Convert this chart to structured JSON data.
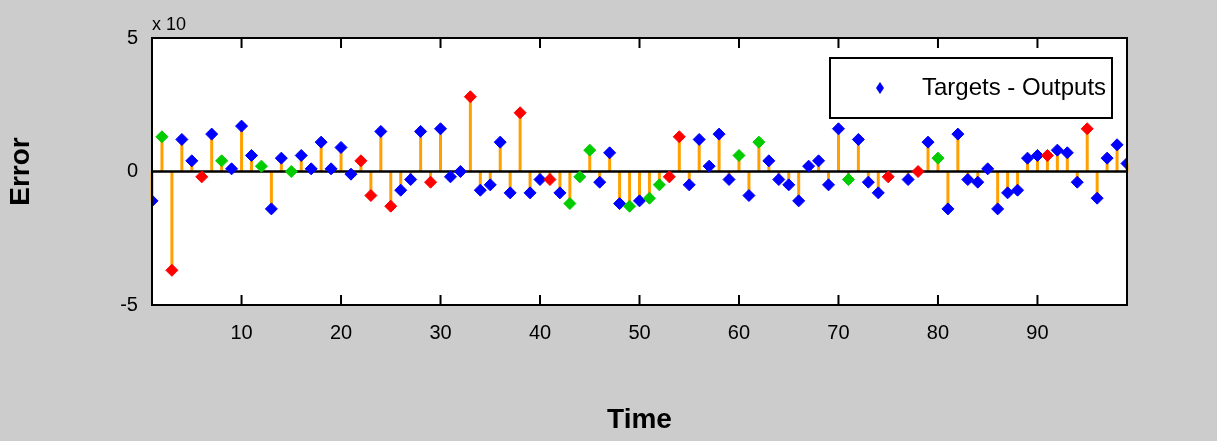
{
  "chart_data": {
    "type": "lollipop",
    "xlabel": "Time",
    "ylabel": "Error",
    "annotations": [
      "x 10"
    ],
    "x": [
      1,
      2,
      3,
      4,
      5,
      6,
      7,
      8,
      9,
      10,
      11,
      12,
      13,
      14,
      15,
      16,
      17,
      18,
      19,
      20,
      21,
      22,
      23,
      24,
      25,
      26,
      27,
      28,
      29,
      30,
      31,
      32,
      33,
      34,
      35,
      36,
      37,
      38,
      39,
      40,
      41,
      42,
      43,
      44,
      45,
      46,
      47,
      48,
      49,
      50,
      51,
      52,
      53,
      54,
      55,
      56,
      57,
      58,
      59,
      60,
      61,
      62,
      63,
      64,
      65,
      66,
      67,
      68,
      69,
      70,
      71,
      72,
      73,
      74,
      75,
      76,
      77,
      78,
      79,
      80,
      81,
      82,
      83,
      84,
      85,
      86,
      87,
      88,
      89,
      90,
      91,
      92,
      93,
      94,
      95,
      96,
      97,
      98,
      99
    ],
    "series": [
      {
        "name": "Targets - Outputs",
        "color": "#ffa000",
        "colors": [
          "#0000ff",
          "#00cc00",
          "#ff0000",
          "#0000ff",
          "#0000ff",
          "#ff0000",
          "#0000ff",
          "#00cc00",
          "#0000ff",
          "#0000ff",
          "#0000ff",
          "#00cc00",
          "#0000ff",
          "#0000ff",
          "#00cc00",
          "#0000ff",
          "#0000ff",
          "#0000ff",
          "#0000ff",
          "#0000ff",
          "#0000ff",
          "#ff0000",
          "#ff0000",
          "#0000ff",
          "#ff0000",
          "#0000ff",
          "#0000ff",
          "#0000ff",
          "#ff0000",
          "#0000ff",
          "#0000ff",
          "#0000ff",
          "#ff0000",
          "#0000ff",
          "#0000ff",
          "#0000ff",
          "#0000ff",
          "#ff0000",
          "#0000ff",
          "#0000ff",
          "#ff0000",
          "#0000ff",
          "#00cc00",
          "#00cc00",
          "#00cc00",
          "#0000ff",
          "#0000ff",
          "#0000ff",
          "#00cc00",
          "#0000ff",
          "#00cc00",
          "#00cc00",
          "#ff0000",
          "#ff0000",
          "#0000ff",
          "#0000ff",
          "#0000ff",
          "#0000ff",
          "#0000ff",
          "#00cc00",
          "#0000ff",
          "#00cc00",
          "#0000ff",
          "#0000ff",
          "#0000ff",
          "#0000ff",
          "#0000ff",
          "#0000ff",
          "#0000ff",
          "#0000ff",
          "#00cc00",
          "#0000ff",
          "#0000ff",
          "#0000ff",
          "#ff0000",
          "#0000ff",
          "#0000ff",
          "#ff0000",
          "#0000ff",
          "#00cc00",
          "#0000ff",
          "#0000ff",
          "#0000ff",
          "#0000ff",
          "#0000ff",
          "#0000ff",
          "#0000ff",
          "#0000ff",
          "#0000ff",
          "#0000ff",
          "#ff0000",
          "#0000ff",
          "#0000ff",
          "#0000ff",
          "#ff0000",
          "#0000ff",
          "#0000ff",
          "#0000ff",
          "#0000ff"
        ],
        "values": [
          -1.1,
          1.3,
          -3.7,
          1.2,
          0.4,
          -0.2,
          1.4,
          0.4,
          0.1,
          1.7,
          0.6,
          0.2,
          -1.4,
          0.5,
          0.0,
          0.6,
          0.1,
          1.1,
          0.1,
          0.9,
          -0.1,
          0.4,
          -0.9,
          1.5,
          -1.3,
          -0.7,
          -0.3,
          1.5,
          -0.4,
          1.6,
          -0.2,
          0.0,
          2.8,
          -0.7,
          -0.5,
          1.1,
          -0.8,
          2.2,
          -0.8,
          -0.3,
          -0.3,
          -0.8,
          -1.2,
          -0.2,
          0.8,
          -0.4,
          0.7,
          -1.2,
          -1.3,
          -1.1,
          -1.0,
          -0.5,
          -0.2,
          1.3,
          -0.5,
          1.2,
          0.2,
          1.4,
          -0.3,
          0.6,
          -0.9,
          1.1,
          0.4,
          -0.3,
          -0.5,
          -1.1,
          0.2,
          0.4,
          -0.5,
          1.6,
          -0.3,
          1.2,
          -0.4,
          -0.8,
          -0.2,
          null,
          -0.3,
          0.0,
          1.1,
          0.5,
          -1.4,
          1.4,
          -0.3,
          -0.4,
          0.1,
          -1.4,
          -0.8,
          -0.7,
          0.5,
          0.6,
          0.6,
          0.8,
          0.7,
          -0.4,
          1.6,
          -1.0,
          0.5,
          1.0,
          0.3
        ]
      }
    ],
    "xlim": [
      1,
      99
    ],
    "xticks": [
      10,
      20,
      30,
      40,
      50,
      60,
      70,
      80,
      90
    ],
    "ylim": [
      -5,
      5
    ],
    "yticks": [
      -5,
      0,
      5
    ],
    "marker": "diamond",
    "legend": "top right"
  }
}
